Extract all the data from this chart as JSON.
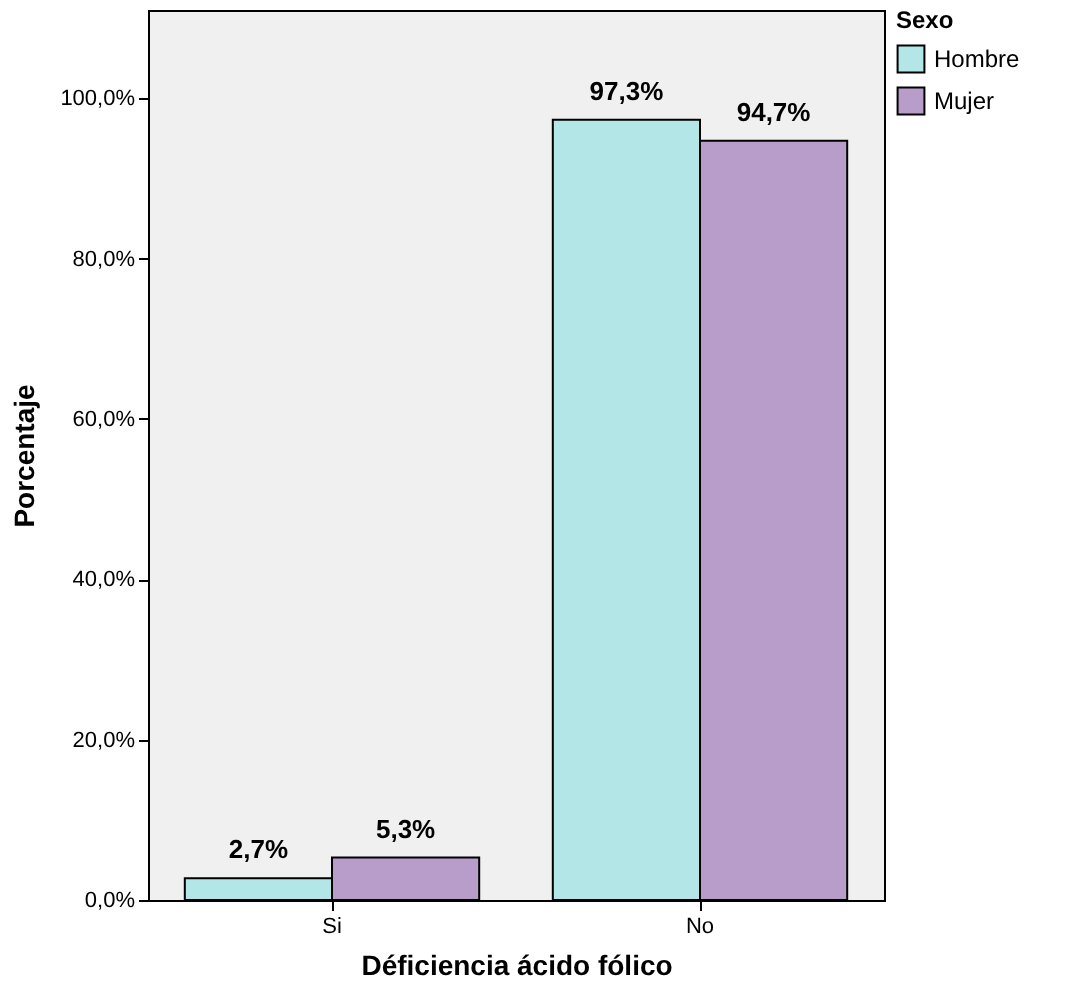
{
  "chart_data": {
    "type": "bar",
    "xlabel": "Déficiencia ácido fólico",
    "ylabel": "Porcentaje",
    "legend_title": "Sexo",
    "legend": "top right",
    "categories": [
      "Si",
      "No"
    ],
    "series": [
      {
        "name": "Hombre",
        "color": "#b3e6e6",
        "values": [
          2.7,
          97.3
        ],
        "value_labels": [
          "2,7%",
          "97,3%"
        ]
      },
      {
        "name": "Mujer",
        "color": "#b89cc9",
        "values": [
          5.3,
          94.7
        ],
        "value_labels": [
          "5,3%",
          "94,7%"
        ]
      }
    ],
    "ylim": [
      0,
      111
    ],
    "yticks": [
      {
        "value": 0,
        "label": "0,0%"
      },
      {
        "value": 20,
        "label": "20,0%"
      },
      {
        "value": 40,
        "label": "40,0%"
      },
      {
        "value": 60,
        "label": "60,0%"
      },
      {
        "value": 80,
        "label": "80,0%"
      },
      {
        "value": 100,
        "label": "100,0%"
      }
    ]
  }
}
